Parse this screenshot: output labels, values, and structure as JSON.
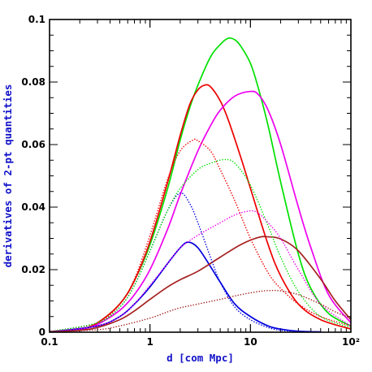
{
  "chart_data": {
    "type": "line",
    "xlabel": "d [com Mpc]",
    "ylabel": "derivatives of 2-pt quantities",
    "xscale": "log",
    "xlim": [
      0.1,
      100
    ],
    "ylim": [
      0,
      0.1
    ],
    "x_tick_labels": [
      "0.1",
      "1",
      "10",
      "10²"
    ],
    "y_tick_labels": [
      "0",
      "0.02",
      "0.04",
      "0.06",
      "0.08",
      "0.1"
    ],
    "y_ticks": [
      0,
      0.02,
      0.04,
      0.06,
      0.08,
      0.1
    ],
    "label_color": "#1010c8",
    "series": [
      {
        "color": "#00e000",
        "style": "solid",
        "points": [
          [
            0.1,
            0.0002
          ],
          [
            0.2,
            0.001
          ],
          [
            0.3,
            0.003
          ],
          [
            0.5,
            0.009
          ],
          [
            0.7,
            0.0165
          ],
          [
            1.0,
            0.028
          ],
          [
            1.5,
            0.046
          ],
          [
            2.0,
            0.0615
          ],
          [
            2.5,
            0.072
          ],
          [
            3.0,
            0.079
          ],
          [
            4.0,
            0.088
          ],
          [
            5.0,
            0.092
          ],
          [
            6.0,
            0.094
          ],
          [
            7.0,
            0.0935
          ],
          [
            8.0,
            0.0915
          ],
          [
            10.0,
            0.086
          ],
          [
            12.0,
            0.078
          ],
          [
            15.0,
            0.066
          ],
          [
            20.0,
            0.048
          ],
          [
            30.0,
            0.025
          ],
          [
            40.0,
            0.014
          ],
          [
            60.0,
            0.006
          ],
          [
            100.0,
            0.002
          ]
        ]
      },
      {
        "color": "#ee0000",
        "style": "solid",
        "points": [
          [
            0.1,
            0.0002
          ],
          [
            0.2,
            0.001
          ],
          [
            0.3,
            0.003
          ],
          [
            0.5,
            0.009
          ],
          [
            0.7,
            0.0165
          ],
          [
            1.0,
            0.029
          ],
          [
            1.5,
            0.048
          ],
          [
            2.0,
            0.063
          ],
          [
            2.5,
            0.073
          ],
          [
            3.0,
            0.0775
          ],
          [
            3.5,
            0.079
          ],
          [
            4.0,
            0.0785
          ],
          [
            5.0,
            0.074
          ],
          [
            6.0,
            0.068
          ],
          [
            8.0,
            0.056
          ],
          [
            10.0,
            0.046
          ],
          [
            15.0,
            0.028
          ],
          [
            20.0,
            0.018
          ],
          [
            30.0,
            0.009
          ],
          [
            50.0,
            0.004
          ],
          [
            100.0,
            0.001
          ]
        ]
      },
      {
        "color": "#ee00ee",
        "style": "solid",
        "points": [
          [
            0.1,
            0.0002
          ],
          [
            0.2,
            0.0009
          ],
          [
            0.3,
            0.0025
          ],
          [
            0.5,
            0.007
          ],
          [
            0.7,
            0.012
          ],
          [
            1.0,
            0.02
          ],
          [
            1.5,
            0.033
          ],
          [
            2.0,
            0.044
          ],
          [
            3.0,
            0.058
          ],
          [
            4.0,
            0.066
          ],
          [
            5.0,
            0.071
          ],
          [
            7.0,
            0.0755
          ],
          [
            10.0,
            0.077
          ],
          [
            12.0,
            0.076
          ],
          [
            15.0,
            0.071
          ],
          [
            20.0,
            0.06
          ],
          [
            30.0,
            0.04
          ],
          [
            40.0,
            0.027
          ],
          [
            60.0,
            0.012
          ],
          [
            100.0,
            0.003
          ]
        ]
      },
      {
        "color": "#0000dd",
        "style": "solid",
        "points": [
          [
            0.1,
            0.0001
          ],
          [
            0.3,
            0.002
          ],
          [
            0.5,
            0.005
          ],
          [
            0.7,
            0.009
          ],
          [
            1.0,
            0.0145
          ],
          [
            1.5,
            0.022
          ],
          [
            2.0,
            0.027
          ],
          [
            2.4,
            0.0288
          ],
          [
            3.0,
            0.027
          ],
          [
            4.0,
            0.021
          ],
          [
            5.0,
            0.016
          ],
          [
            7.0,
            0.009
          ],
          [
            10.0,
            0.005
          ],
          [
            15.0,
            0.002
          ],
          [
            20.0,
            0.001
          ],
          [
            30.0,
            0.0003
          ],
          [
            50.0,
            0.0001
          ]
        ]
      },
      {
        "color": "#a52020",
        "style": "solid",
        "points": [
          [
            0.1,
            0.0001
          ],
          [
            0.2,
            0.0006
          ],
          [
            0.3,
            0.0015
          ],
          [
            0.5,
            0.004
          ],
          [
            0.7,
            0.0068
          ],
          [
            1.0,
            0.0105
          ],
          [
            1.5,
            0.0145
          ],
          [
            2.0,
            0.0168
          ],
          [
            3.0,
            0.0195
          ],
          [
            5.0,
            0.024
          ],
          [
            8.0,
            0.028
          ],
          [
            12.0,
            0.0303
          ],
          [
            15.0,
            0.0305
          ],
          [
            20.0,
            0.0298
          ],
          [
            30.0,
            0.026
          ],
          [
            50.0,
            0.017
          ],
          [
            70.0,
            0.01
          ],
          [
            100.0,
            0.004
          ]
        ]
      },
      {
        "color": "#0000dd",
        "style": "dotted",
        "points": [
          [
            0.1,
            0.0002
          ],
          [
            0.3,
            0.003
          ],
          [
            0.5,
            0.008
          ],
          [
            0.7,
            0.015
          ],
          [
            1.0,
            0.026
          ],
          [
            1.5,
            0.039
          ],
          [
            2.0,
            0.0445
          ],
          [
            2.5,
            0.041
          ],
          [
            3.0,
            0.035
          ],
          [
            4.0,
            0.024
          ],
          [
            5.0,
            0.016
          ],
          [
            7.0,
            0.008
          ],
          [
            10.0,
            0.004
          ],
          [
            15.0,
            0.0015
          ],
          [
            20.0,
            0.0006
          ],
          [
            30.0,
            0.0002
          ]
        ]
      },
      {
        "color": "#ee0000",
        "style": "dotted",
        "points": [
          [
            0.1,
            0.0002
          ],
          [
            0.3,
            0.003
          ],
          [
            0.5,
            0.009
          ],
          [
            0.7,
            0.017
          ],
          [
            1.0,
            0.031
          ],
          [
            1.5,
            0.049
          ],
          [
            2.0,
            0.058
          ],
          [
            2.7,
            0.0615
          ],
          [
            3.0,
            0.0612
          ],
          [
            4.0,
            0.058
          ],
          [
            5.0,
            0.052
          ],
          [
            7.0,
            0.042
          ],
          [
            10.0,
            0.03
          ],
          [
            15.0,
            0.019
          ],
          [
            20.0,
            0.014
          ],
          [
            30.0,
            0.009
          ],
          [
            50.0,
            0.005
          ],
          [
            100.0,
            0.002
          ]
        ]
      },
      {
        "color": "#00e000",
        "style": "dotted",
        "points": [
          [
            0.1,
            0.0002
          ],
          [
            0.3,
            0.003
          ],
          [
            0.5,
            0.008
          ],
          [
            0.7,
            0.015
          ],
          [
            1.0,
            0.026
          ],
          [
            1.5,
            0.039
          ],
          [
            2.0,
            0.046
          ],
          [
            3.0,
            0.052
          ],
          [
            4.0,
            0.054
          ],
          [
            5.5,
            0.0552
          ],
          [
            7.0,
            0.054
          ],
          [
            10.0,
            0.047
          ],
          [
            15.0,
            0.034
          ],
          [
            20.0,
            0.024
          ],
          [
            30.0,
            0.013
          ],
          [
            50.0,
            0.005
          ],
          [
            100.0,
            0.0015
          ]
        ]
      },
      {
        "color": "#ee00ee",
        "style": "dotted",
        "points": [
          [
            0.1,
            0.0001
          ],
          [
            0.3,
            0.002
          ],
          [
            0.5,
            0.005
          ],
          [
            0.7,
            0.009
          ],
          [
            1.0,
            0.015
          ],
          [
            1.5,
            0.022
          ],
          [
            2.0,
            0.027
          ],
          [
            3.0,
            0.031
          ],
          [
            5.0,
            0.035
          ],
          [
            7.0,
            0.0375
          ],
          [
            10.0,
            0.0388
          ],
          [
            12.0,
            0.038
          ],
          [
            15.0,
            0.035
          ],
          [
            20.0,
            0.03
          ],
          [
            30.0,
            0.02
          ],
          [
            50.0,
            0.009
          ],
          [
            100.0,
            0.002
          ]
        ]
      },
      {
        "color": "#a52020",
        "style": "dotted",
        "points": [
          [
            0.1,
            0.0001
          ],
          [
            0.3,
            0.0008
          ],
          [
            0.5,
            0.002
          ],
          [
            1.0,
            0.0045
          ],
          [
            1.5,
            0.0065
          ],
          [
            2.0,
            0.0078
          ],
          [
            3.0,
            0.009
          ],
          [
            5.0,
            0.0105
          ],
          [
            8.0,
            0.012
          ],
          [
            12.0,
            0.013
          ],
          [
            15.0,
            0.0133
          ],
          [
            20.0,
            0.0132
          ],
          [
            30.0,
            0.012
          ],
          [
            50.0,
            0.009
          ],
          [
            70.0,
            0.0065
          ],
          [
            100.0,
            0.0045
          ]
        ]
      }
    ]
  }
}
